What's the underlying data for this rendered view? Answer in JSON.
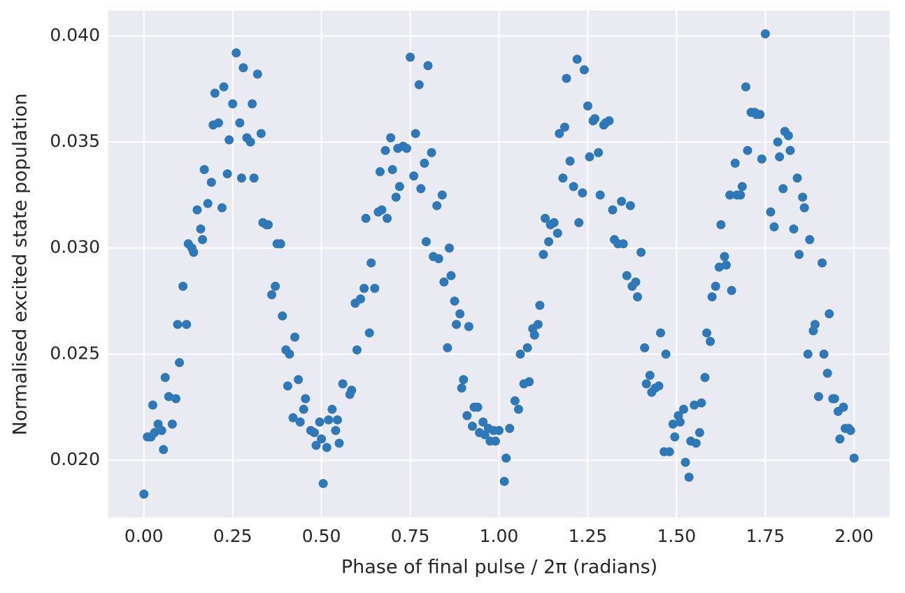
{
  "chart_data": {
    "type": "scatter",
    "x_label": "Phase of final pulse / 2π (radians)",
    "y_label": "Normalised excited state population",
    "color": "#2e78b7",
    "grid": true,
    "xlim": [
      -0.1,
      2.1
    ],
    "ylim": [
      0.0173,
      0.0412
    ],
    "xticks": [
      {
        "value": 0,
        "label": "0.00"
      },
      0.25,
      {
        "value": 0.5,
        "label": "0.50"
      },
      0.75,
      {
        "value": 1,
        "label": "1.00"
      },
      1.25,
      {
        "value": 1.5,
        "label": "1.50"
      },
      1.75,
      {
        "value": 2,
        "label": "2.00"
      }
    ],
    "yticks": [
      {
        "value": 0.02,
        "label": "0.020"
      },
      0.025,
      {
        "value": 0.03,
        "label": "0.030"
      },
      0.035,
      {
        "value": 0.04,
        "label": "0.040"
      }
    ],
    "x": [
      0.0,
      0.01,
      0.02,
      0.025,
      0.03,
      0.04,
      0.05,
      0.055,
      0.06,
      0.07,
      0.08,
      0.09,
      0.095,
      0.1,
      0.11,
      0.12,
      0.125,
      0.135,
      0.14,
      0.15,
      0.16,
      0.165,
      0.17,
      0.18,
      0.19,
      0.195,
      0.2,
      0.21,
      0.22,
      0.225,
      0.235,
      0.24,
      0.25,
      0.26,
      0.27,
      0.275,
      0.28,
      0.29,
      0.3,
      0.305,
      0.31,
      0.32,
      0.33,
      0.335,
      0.345,
      0.35,
      0.36,
      0.37,
      0.375,
      0.385,
      0.39,
      0.4,
      0.405,
      0.41,
      0.42,
      0.425,
      0.435,
      0.44,
      0.45,
      0.455,
      0.47,
      0.48,
      0.485,
      0.495,
      0.5,
      0.505,
      0.515,
      0.52,
      0.53,
      0.54,
      0.545,
      0.55,
      0.56,
      0.58,
      0.585,
      0.595,
      0.6,
      0.61,
      0.62,
      0.625,
      0.635,
      0.64,
      0.65,
      0.66,
      0.665,
      0.67,
      0.68,
      0.685,
      0.695,
      0.7,
      0.71,
      0.715,
      0.72,
      0.73,
      0.74,
      0.75,
      0.76,
      0.765,
      0.775,
      0.78,
      0.79,
      0.795,
      0.8,
      0.81,
      0.815,
      0.825,
      0.83,
      0.84,
      0.845,
      0.855,
      0.86,
      0.865,
      0.875,
      0.88,
      0.89,
      0.895,
      0.9,
      0.91,
      0.915,
      0.925,
      0.93,
      0.94,
      0.945,
      0.955,
      0.96,
      0.97,
      0.975,
      0.985,
      0.99,
      1.0,
      1.015,
      1.02,
      1.03,
      1.045,
      1.055,
      1.06,
      1.07,
      1.08,
      1.085,
      1.095,
      1.1,
      1.11,
      1.115,
      1.125,
      1.13,
      1.14,
      1.145,
      1.155,
      1.165,
      1.17,
      1.18,
      1.185,
      1.19,
      1.2,
      1.21,
      1.22,
      1.225,
      1.235,
      1.24,
      1.25,
      1.255,
      1.265,
      1.27,
      1.28,
      1.285,
      1.295,
      1.3,
      1.31,
      1.32,
      1.325,
      1.335,
      1.345,
      1.35,
      1.36,
      1.37,
      1.375,
      1.385,
      1.39,
      1.4,
      1.41,
      1.415,
      1.425,
      1.43,
      1.44,
      1.45,
      1.455,
      1.465,
      1.47,
      1.48,
      1.49,
      1.495,
      1.505,
      1.51,
      1.52,
      1.525,
      1.535,
      1.54,
      1.55,
      1.555,
      1.565,
      1.57,
      1.58,
      1.585,
      1.595,
      1.6,
      1.61,
      1.62,
      1.625,
      1.635,
      1.64,
      1.65,
      1.655,
      1.665,
      1.67,
      1.68,
      1.685,
      1.695,
      1.7,
      1.71,
      1.72,
      1.725,
      1.735,
      1.74,
      1.75,
      1.765,
      1.775,
      1.785,
      1.79,
      1.8,
      1.805,
      1.815,
      1.82,
      1.83,
      1.84,
      1.845,
      1.855,
      1.86,
      1.87,
      1.875,
      1.885,
      1.89,
      1.9,
      1.91,
      1.915,
      1.925,
      1.93,
      1.94,
      1.945,
      1.955,
      1.96,
      1.97,
      1.975,
      1.985,
      1.99,
      2.0
    ],
    "y": [
      0.0184,
      0.0211,
      0.0211,
      0.0226,
      0.0213,
      0.0217,
      0.0214,
      0.0205,
      0.0239,
      0.023,
      0.0217,
      0.0229,
      0.0264,
      0.0246,
      0.0282,
      0.0264,
      0.0302,
      0.03,
      0.0298,
      0.0318,
      0.0309,
      0.0304,
      0.0337,
      0.0321,
      0.0331,
      0.0358,
      0.0373,
      0.0359,
      0.0319,
      0.0376,
      0.0335,
      0.0351,
      0.0368,
      0.0392,
      0.0359,
      0.0333,
      0.0385,
      0.0352,
      0.035,
      0.0368,
      0.0333,
      0.0382,
      0.0354,
      0.0312,
      0.0311,
      0.0311,
      0.0278,
      0.0282,
      0.0302,
      0.0302,
      0.0268,
      0.0252,
      0.0235,
      0.025,
      0.022,
      0.0258,
      0.0238,
      0.0218,
      0.0224,
      0.0229,
      0.0214,
      0.0213,
      0.0207,
      0.0218,
      0.021,
      0.0189,
      0.0206,
      0.0219,
      0.0224,
      0.0214,
      0.0219,
      0.0208,
      0.0236,
      0.0231,
      0.0233,
      0.0274,
      0.0252,
      0.0276,
      0.0281,
      0.0314,
      0.026,
      0.0293,
      0.0281,
      0.0317,
      0.0336,
      0.0318,
      0.0346,
      0.0314,
      0.0352,
      0.0337,
      0.0324,
      0.0347,
      0.0329,
      0.0348,
      0.0347,
      0.039,
      0.0334,
      0.0354,
      0.0377,
      0.0328,
      0.034,
      0.0303,
      0.0386,
      0.0345,
      0.0296,
      0.032,
      0.0295,
      0.0325,
      0.0284,
      0.0253,
      0.03,
      0.0287,
      0.0275,
      0.0264,
      0.0269,
      0.0234,
      0.0238,
      0.0221,
      0.0263,
      0.0216,
      0.0225,
      0.0225,
      0.0213,
      0.0218,
      0.0212,
      0.0215,
      0.0209,
      0.0214,
      0.0209,
      0.0214,
      0.019,
      0.0201,
      0.0215,
      0.0228,
      0.0224,
      0.025,
      0.0236,
      0.0253,
      0.0237,
      0.0262,
      0.0259,
      0.0264,
      0.0273,
      0.0297,
      0.0314,
      0.0303,
      0.0311,
      0.0312,
      0.0307,
      0.0354,
      0.0333,
      0.0357,
      0.038,
      0.0341,
      0.0329,
      0.0389,
      0.0312,
      0.0326,
      0.0384,
      0.0367,
      0.0343,
      0.036,
      0.0361,
      0.0345,
      0.0325,
      0.0358,
      0.0359,
      0.036,
      0.0318,
      0.0304,
      0.0302,
      0.0322,
      0.0302,
      0.0287,
      0.032,
      0.0282,
      0.0284,
      0.0277,
      0.0298,
      0.0253,
      0.0236,
      0.024,
      0.0232,
      0.0234,
      0.0235,
      0.026,
      0.0204,
      0.025,
      0.0204,
      0.0217,
      0.0211,
      0.0221,
      0.0218,
      0.0224,
      0.0199,
      0.0192,
      0.0209,
      0.0226,
      0.0208,
      0.0213,
      0.0227,
      0.0239,
      0.026,
      0.0256,
      0.0277,
      0.0282,
      0.0291,
      0.0311,
      0.0296,
      0.0292,
      0.0325,
      0.028,
      0.034,
      0.0325,
      0.0325,
      0.0329,
      0.0376,
      0.0346,
      0.0364,
      0.0364,
      0.0363,
      0.0363,
      0.0342,
      0.0401,
      0.0317,
      0.031,
      0.035,
      0.0343,
      0.0328,
      0.0355,
      0.0353,
      0.0346,
      0.0309,
      0.0333,
      0.0297,
      0.0324,
      0.0319,
      0.025,
      0.0304,
      0.0261,
      0.0264,
      0.023,
      0.0293,
      0.025,
      0.0241,
      0.0269,
      0.0229,
      0.0229,
      0.0223,
      0.021,
      0.0225,
      0.0215,
      0.0215,
      0.0214,
      0.0201
    ]
  }
}
